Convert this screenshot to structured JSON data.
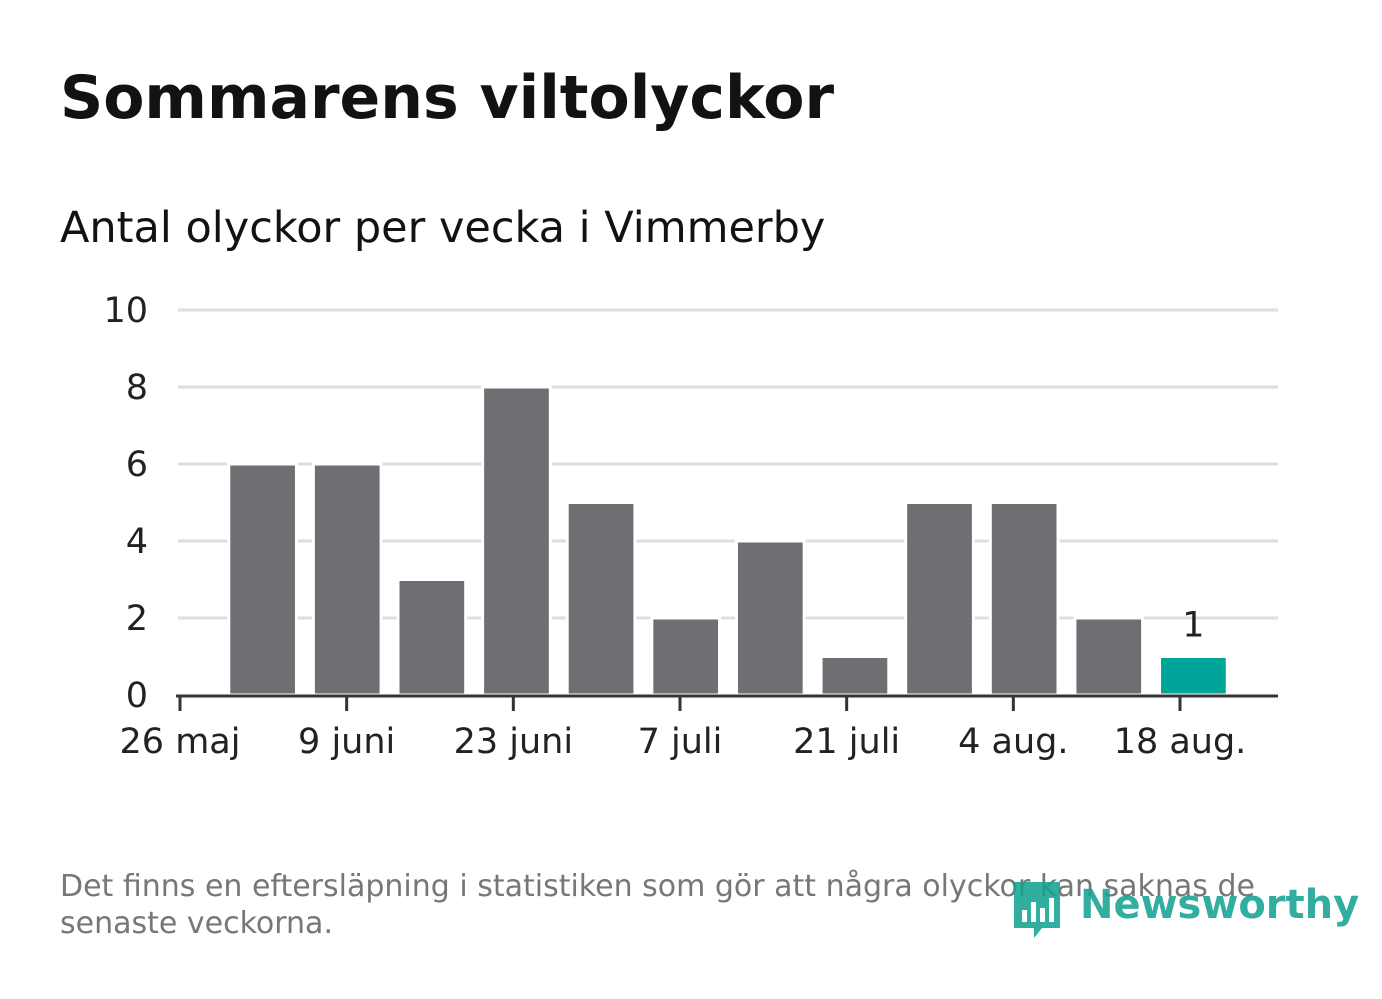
{
  "title": "Sommarens viltolyckor",
  "subtitle": "Antal olyckor per vecka i Vimmerby",
  "note": "Det finns en eftersläpning i statistiken som gör att några olyckor kan saknas de senaste veckorna.",
  "logo": {
    "text": "Newsworthy"
  },
  "colors": {
    "bar": "#6f6e73",
    "highlight": "#00a398",
    "grid": "#dddddd",
    "axis": "#333333",
    "logo": "#16a394"
  },
  "chart_data": {
    "type": "bar",
    "title": "Sommarens viltolyckor",
    "subtitle": "Antal olyckor per vecka i Vimmerby",
    "ylim": [
      0,
      10
    ],
    "yticks": [
      0,
      2,
      4,
      6,
      8,
      10
    ],
    "xtick_labels": [
      "26 maj",
      "9 juni",
      "23 juni",
      "7 juli",
      "21 juli",
      "4 aug.",
      "18 aug."
    ],
    "values": [
      6,
      6,
      3,
      8,
      5,
      2,
      4,
      1,
      5,
      5,
      2,
      1
    ],
    "highlight_index": 11,
    "annotation": {
      "index": 11,
      "text": "1"
    },
    "grid": true
  }
}
